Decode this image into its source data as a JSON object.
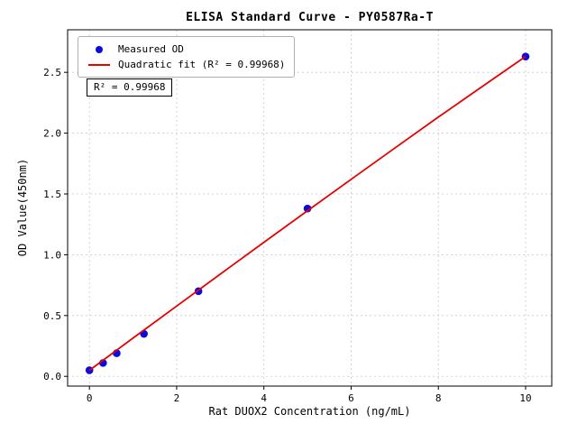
{
  "chart_data": {
    "type": "scatter",
    "title": "ELISA Standard Curve - PY0587Ra-T",
    "xlabel": "Rat DUOX2 Concentration (ng/mL)",
    "ylabel": "OD Value(450nm)",
    "xlim": [
      -0.5,
      10.6
    ],
    "ylim": [
      -0.08,
      2.85
    ],
    "xticks": [
      0,
      2,
      4,
      6,
      8,
      10
    ],
    "xtick_labels": [
      "0",
      "2",
      "4",
      "6",
      "8",
      "10"
    ],
    "yticks": [
      0,
      0.5,
      1,
      1.5,
      2,
      2.5
    ],
    "ytick_labels": [
      "0.0",
      "0.5",
      "1.0",
      "1.5",
      "2.0",
      "2.5"
    ],
    "grid": true,
    "grid_color": "#c9c9c9",
    "axis_color": "#000000",
    "annotation": "R² = 0.99968",
    "legend": {
      "position": "upper-left",
      "entries": [
        {
          "label": "Measured OD",
          "marker": "dot",
          "color": "#0b0bdf"
        },
        {
          "label": "Quadratic fit (R² = 0.99968)",
          "marker": "line",
          "color": "#e60000"
        }
      ]
    },
    "series": [
      {
        "name": "Measured OD",
        "type": "scatter",
        "color": "#0b0bdf",
        "points": [
          [
            0,
            0.05
          ],
          [
            0.3125,
            0.11
          ],
          [
            0.625,
            0.19
          ],
          [
            1.25,
            0.35
          ],
          [
            2.5,
            0.7
          ],
          [
            5,
            1.38
          ],
          [
            10,
            2.63
          ]
        ]
      },
      {
        "name": "Quadratic fit",
        "type": "line",
        "color": "#e60000",
        "points": [
          [
            0,
            0.05
          ],
          [
            1,
            0.315
          ],
          [
            2,
            0.578
          ],
          [
            3,
            0.841
          ],
          [
            4,
            1.102
          ],
          [
            5,
            1.362
          ],
          [
            6,
            1.62
          ],
          [
            7,
            1.877
          ],
          [
            8,
            2.132
          ],
          [
            9,
            2.382
          ],
          [
            10,
            2.63
          ]
        ]
      }
    ]
  }
}
